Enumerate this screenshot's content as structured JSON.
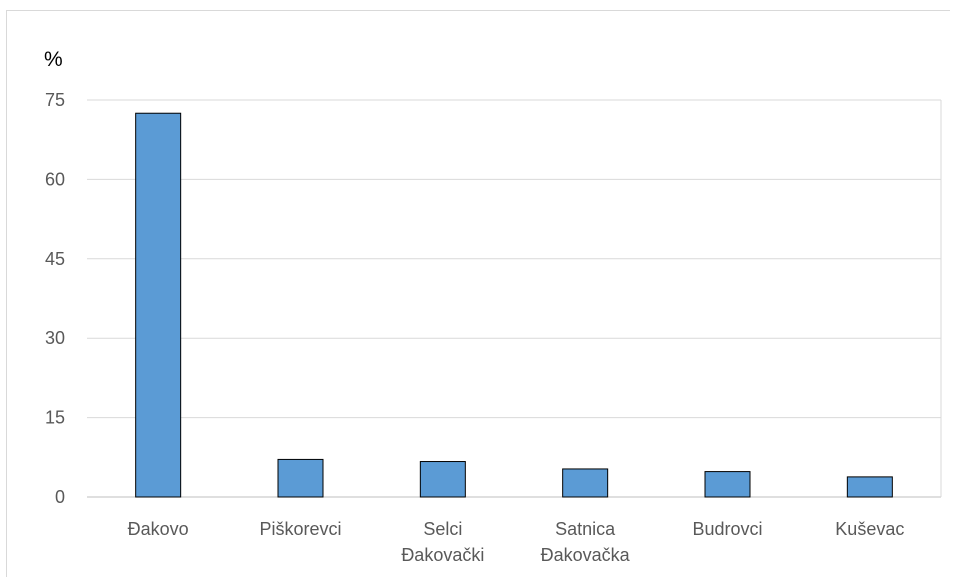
{
  "chart_data": {
    "type": "bar",
    "title": "",
    "xlabel": "",
    "ylabel": "%",
    "categories": [
      [
        "Đakovo"
      ],
      [
        "Piškorevci"
      ],
      [
        "Selci",
        "Đakovački"
      ],
      [
        "Satnica",
        "Đakovačka"
      ],
      [
        "Budrovci"
      ],
      [
        "Kuševac"
      ]
    ],
    "values": [
      72.5,
      7.1,
      6.7,
      5.3,
      4.8,
      3.8
    ],
    "ylim": [
      0,
      75
    ],
    "yticks": [
      "0",
      "15",
      "30",
      "45",
      "60",
      "75"
    ],
    "grid": true,
    "legend": "none",
    "colors": {
      "bar_fill": "#5b9bd5",
      "bar_stroke": "#000000",
      "grid": "#d9d9d9"
    }
  }
}
